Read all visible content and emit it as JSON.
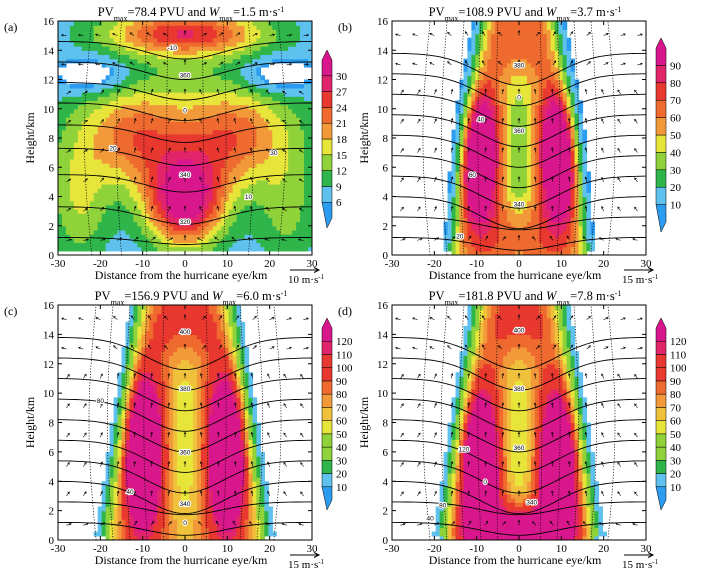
{
  "chart_data": [
    {
      "panel_label": "(a)",
      "type": "heatmap",
      "title": {
        "prefix": "PV",
        "sub": "max",
        "mid": "=78.4 PVU and ",
        "w": "W",
        "wsub": "max",
        "suffix": "=1.5 m·s",
        "sup": "-1"
      },
      "xlabel": "Distance from the hurricane eye/km",
      "ylabel": "Height/km",
      "xlim": [
        -30,
        30
      ],
      "ylim": [
        0,
        16
      ],
      "xticks": [
        "-30",
        "-20",
        "-10",
        "0",
        "10",
        "20",
        "30"
      ],
      "yticks": [
        "0",
        "2",
        "4",
        "6",
        "8",
        "10",
        "12",
        "14",
        "16"
      ],
      "colorbar_levels": [
        "6",
        "9",
        "12",
        "15",
        "18",
        "21",
        "24",
        "27",
        "30"
      ],
      "reference_vector": {
        "value": "10",
        "unit": "m·s",
        "sup": "-1"
      },
      "contour_labels": [
        "320",
        "340",
        "360",
        "20",
        "10",
        "-10",
        "0",
        "30"
      ],
      "features": {
        "mode": "a",
        "core_peak": 30,
        "top_band_peak": 27
      }
    },
    {
      "panel_label": "(b)",
      "type": "heatmap",
      "title": {
        "prefix": "PV",
        "sub": "max",
        "mid": "=108.9 PVU and ",
        "w": "W",
        "wsub": "max",
        "suffix": "=3.7 m·s",
        "sup": "-1"
      },
      "xlabel": "Distance from the hurricane eye/km",
      "ylabel": "Height/km",
      "xlim": [
        -30,
        30
      ],
      "ylim": [
        0,
        16
      ],
      "xticks": [
        "-30",
        "-20",
        "-10",
        "0",
        "10",
        "20",
        "30"
      ],
      "yticks": [
        "0",
        "2",
        "4",
        "6",
        "8",
        "10",
        "12",
        "14",
        "16"
      ],
      "colorbar_levels": [
        "10",
        "20",
        "30",
        "40",
        "50",
        "60",
        "70",
        "80",
        "90"
      ],
      "reference_vector": {
        "value": "15",
        "unit": "m·s",
        "sup": "-1"
      },
      "contour_labels": [
        "380",
        "360",
        "340",
        "40",
        "60",
        "20",
        "0"
      ],
      "features": {
        "mode": "b",
        "eyewall_x": 10,
        "eyewall_peak": 90
      }
    },
    {
      "panel_label": "(c)",
      "type": "heatmap",
      "title": {
        "prefix": "PV",
        "sub": "max",
        "mid": "=156.9 PVU and ",
        "w": "W",
        "wsub": "max",
        "suffix": "=6.0 m·s",
        "sup": "-1"
      },
      "xlabel": "Distance from the hurricane eye/km",
      "ylabel": "Height/km",
      "xlim": [
        -30,
        30
      ],
      "ylim": [
        0,
        16
      ],
      "xticks": [
        "-30",
        "-20",
        "-10",
        "0",
        "10",
        "20",
        "30"
      ],
      "yticks": [
        "0",
        "2",
        "4",
        "6",
        "8",
        "10",
        "12",
        "14",
        "16"
      ],
      "colorbar_levels": [
        "10",
        "20",
        "30",
        "40",
        "50",
        "60",
        "70",
        "80",
        "90",
        "100",
        "110",
        "120"
      ],
      "reference_vector": {
        "value": "15",
        "unit": "m·s",
        "sup": "-1"
      },
      "contour_labels": [
        "400",
        "380",
        "360",
        "340",
        "80",
        "40",
        "0"
      ],
      "features": {
        "mode": "c",
        "eyewall_x": 10,
        "eyewall_peak": 120
      }
    },
    {
      "panel_label": "(d)",
      "type": "heatmap",
      "title": {
        "prefix": "PV",
        "sub": "max",
        "mid": "=181.8 PVU and ",
        "w": "W",
        "wsub": "max",
        "suffix": "=7.8 m·s",
        "sup": "-1"
      },
      "xlabel": "Distance from the hurricane eye/km",
      "ylabel": "Height/km",
      "xlim": [
        -30,
        30
      ],
      "ylim": [
        0,
        16
      ],
      "xticks": [
        "-30",
        "-20",
        "-10",
        "0",
        "10",
        "20",
        "30"
      ],
      "yticks": [
        "0",
        "2",
        "4",
        "6",
        "8",
        "10",
        "12",
        "14",
        "16"
      ],
      "colorbar_levels": [
        "10",
        "20",
        "30",
        "40",
        "50",
        "60",
        "70",
        "80",
        "90",
        "100",
        "110",
        "120"
      ],
      "reference_vector": {
        "value": "15",
        "unit": "m·s",
        "sup": "-1"
      },
      "contour_labels": [
        "400",
        "380",
        "360",
        "340",
        "120",
        "80",
        "40",
        "0"
      ],
      "features": {
        "mode": "d",
        "eyewall_x": 9,
        "eyewall_peak": 120
      }
    }
  ],
  "colormap": [
    "#2b9cf0",
    "#5fc1ee",
    "#2fb54a",
    "#8fd23a",
    "#e7e53a",
    "#f0c23c",
    "#f29a3a",
    "#ee6a2e",
    "#e8382f",
    "#e2246a",
    "#d9178c"
  ]
}
